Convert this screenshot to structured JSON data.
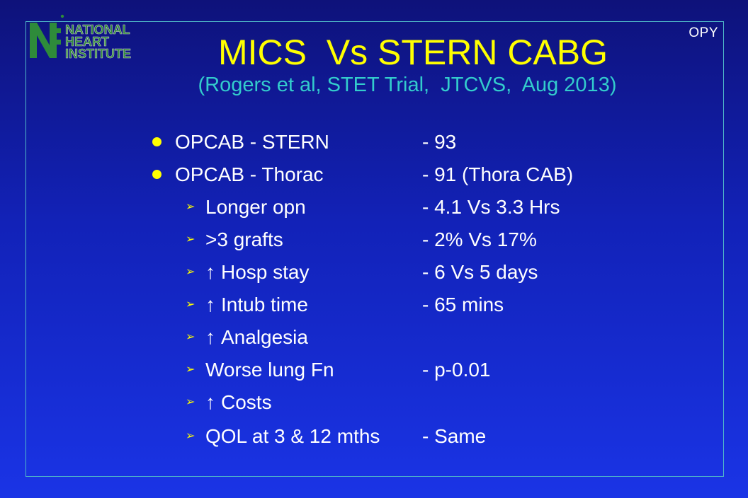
{
  "header": {
    "logo_lines": [
      "NATIONAL",
      "HEART",
      "INSTITUTE"
    ],
    "corner_label": "OPY"
  },
  "slide": {
    "title": "MICS  Vs STERN CABG",
    "subtitle": "(Rogers et al, STET Trial,  JTCVS,  Aug 2013)"
  },
  "items": [
    {
      "marker": "bullet",
      "label": "OPCAB - STERN",
      "value": "- 93"
    },
    {
      "marker": "bullet",
      "label": "OPCAB - Thorac",
      "value": "- 91 (Thora CAB)"
    },
    {
      "marker": "arrow",
      "label": "Longer opn",
      "value": "- 4.1 Vs 3.3 Hrs"
    },
    {
      "marker": "arrow",
      "label": ">3 grafts",
      "value": "- 2% Vs 17%"
    },
    {
      "marker": "arrow",
      "up": "↑",
      "label": "Hosp stay",
      "value": "- 6 Vs 5 days"
    },
    {
      "marker": "arrow",
      "up": "↑",
      "label": "Intub time",
      "value": "- 65 mins"
    },
    {
      "marker": "arrow",
      "up": "↑",
      "label": "Analgesia",
      "value": ""
    },
    {
      "marker": "arrow",
      "label": "Worse lung Fn",
      "value": "- p-0.01"
    },
    {
      "marker": "arrow",
      "up": "↑",
      "label": "Costs",
      "value": ""
    },
    {
      "marker": "arrow",
      "label": "QOL at 3 & 12 mths",
      "value": "- Same"
    }
  ],
  "colors": {
    "title": "#ffff00",
    "subtitle": "#33cccc",
    "text": "#ffffff",
    "bullet": "#ffff00",
    "frame": "#4fb8c8",
    "logo": "#2e8b3a"
  }
}
